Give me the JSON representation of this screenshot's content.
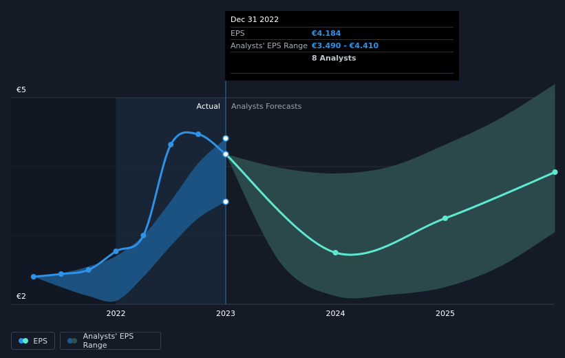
{
  "tooltip": {
    "date": "Dec 31 2022",
    "eps_label": "EPS",
    "eps_value": "€4.184",
    "range_label": "Analysts' EPS Range",
    "range_value": "€3.490 - €4.410",
    "analysts": "8 Analysts"
  },
  "legend": {
    "eps": "EPS",
    "range": "Analysts' EPS Range"
  },
  "colors": {
    "eps_line": "#2e93e8",
    "forecast_line": "#5ee8d0",
    "actual_band": "#1d5a8f",
    "forecast_band": "#2d4f50",
    "background": "#151b26"
  },
  "chart_data": {
    "type": "line",
    "y_unit": "€",
    "ylim": [
      2,
      5
    ],
    "y_tick_labels": [
      "€5",
      "€2"
    ],
    "x_tick_labels": [
      "2022",
      "2023",
      "2024",
      "2025"
    ],
    "section_labels": {
      "actual": "Actual",
      "forecast": "Analysts Forecasts"
    },
    "series": [
      {
        "name": "EPS",
        "kind": "actual",
        "points": [
          {
            "x": 2021.25,
            "y": 2.4
          },
          {
            "x": 2021.5,
            "y": 2.44
          },
          {
            "x": 2021.75,
            "y": 2.5
          },
          {
            "x": 2022.0,
            "y": 2.77
          },
          {
            "x": 2022.25,
            "y": 3.0
          },
          {
            "x": 2022.5,
            "y": 4.32
          },
          {
            "x": 2022.75,
            "y": 4.47
          },
          {
            "x": 2023.0,
            "y": 4.18
          }
        ]
      },
      {
        "name": "EPS",
        "kind": "forecast",
        "points": [
          {
            "x": 2023.0,
            "y": 4.18
          },
          {
            "x": 2024.0,
            "y": 2.75
          },
          {
            "x": 2025.0,
            "y": 3.25
          },
          {
            "x": 2026.0,
            "y": 3.92
          }
        ]
      }
    ],
    "ranges": [
      {
        "name": "Analysts' EPS Range",
        "kind": "actual",
        "x": [
          2021.25,
          2021.5,
          2021.75,
          2022.0,
          2022.25,
          2022.5,
          2022.75,
          2023.0
        ],
        "low": [
          2.4,
          2.25,
          2.12,
          2.05,
          2.4,
          2.85,
          3.25,
          3.49
        ],
        "high": [
          2.4,
          2.45,
          2.55,
          2.7,
          3.0,
          3.5,
          4.05,
          4.41
        ]
      },
      {
        "name": "Analysts' EPS Range",
        "kind": "forecast",
        "x": [
          2023.0,
          2023.5,
          2024.0,
          2024.5,
          2025.0,
          2025.5,
          2026.0
        ],
        "low": [
          4.18,
          2.6,
          2.12,
          2.14,
          2.25,
          2.55,
          3.05
        ],
        "high": [
          4.18,
          3.98,
          3.9,
          4.0,
          4.32,
          4.7,
          5.2
        ]
      }
    ],
    "markers": [
      {
        "x": 2023.0,
        "y": 4.41
      },
      {
        "x": 2023.0,
        "y": 3.49
      }
    ],
    "grid": true
  }
}
